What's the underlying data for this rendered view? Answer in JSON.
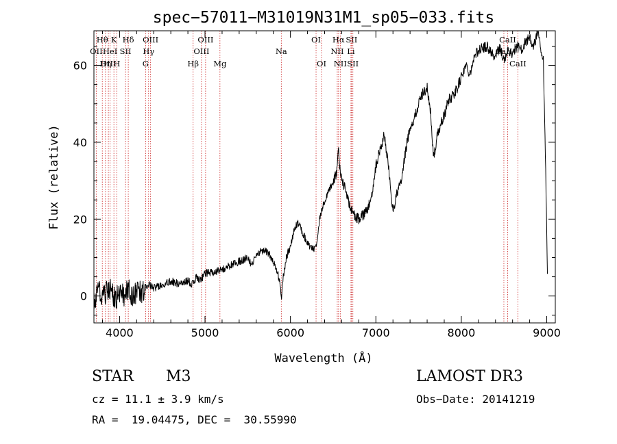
{
  "chart_data": {
    "type": "line",
    "title": "spec−57011−M31019N31M1_sp05−033.fits",
    "xlabel": "Wavelength (Å)",
    "ylabel": "Flux (relative)",
    "xlim": [
      3700,
      9100
    ],
    "ylim": [
      -7,
      69
    ],
    "x_ticks": [
      4000,
      5000,
      6000,
      7000,
      8000,
      9000
    ],
    "y_ticks": [
      0,
      20,
      40,
      60
    ],
    "grid": false,
    "series": [
      {
        "name": "flux",
        "color": "#000000",
        "x": [
          3700,
          3750,
          3800,
          3850,
          3900,
          3950,
          4000,
          4050,
          4100,
          4150,
          4200,
          4250,
          4300,
          4350,
          4400,
          4500,
          4600,
          4700,
          4800,
          4850,
          4900,
          4950,
          5000,
          5100,
          5200,
          5300,
          5400,
          5500,
          5550,
          5600,
          5700,
          5750,
          5800,
          5850,
          5880,
          5893,
          5910,
          5950,
          6000,
          6050,
          6100,
          6150,
          6200,
          6250,
          6300,
          6350,
          6400,
          6450,
          6500,
          6540,
          6563,
          6580,
          6600,
          6650,
          6700,
          6750,
          6800,
          6850,
          6900,
          6950,
          7000,
          7050,
          7100,
          7150,
          7200,
          7250,
          7300,
          7350,
          7400,
          7450,
          7500,
          7550,
          7600,
          7640,
          7660,
          7680,
          7700,
          7720,
          7750,
          7800,
          7850,
          7900,
          7950,
          8000,
          8050,
          8100,
          8150,
          8200,
          8300,
          8400,
          8450,
          8500,
          8550,
          8600,
          8650,
          8700,
          8750,
          8800,
          8850,
          8900,
          8930,
          8960,
          8990,
          9010
        ],
        "y": [
          -4,
          2,
          0,
          1,
          2,
          -1,
          1,
          0,
          2,
          0,
          1,
          1,
          2,
          3,
          2,
          3,
          4,
          3,
          4,
          3,
          5,
          4,
          6,
          6,
          7,
          8,
          9,
          10,
          8,
          11,
          12,
          11,
          9,
          6,
          3,
          -1,
          4,
          10,
          13,
          18,
          19,
          16,
          14,
          12,
          13,
          21,
          25,
          27,
          30,
          32,
          38,
          33,
          31,
          27,
          23,
          21,
          20,
          21,
          22,
          26,
          34,
          38,
          42,
          33,
          22,
          27,
          30,
          38,
          44,
          46,
          50,
          53,
          54,
          48,
          40,
          36,
          39,
          42,
          44,
          47,
          51,
          52,
          54,
          57,
          60,
          58,
          62,
          64,
          65,
          62,
          65,
          61,
          64,
          63,
          65,
          64,
          66,
          67,
          65,
          69,
          63,
          61,
          30,
          3
        ]
      }
    ],
    "lines": [
      {
        "label": "Hθ",
        "wave": 3798,
        "row": 0
      },
      {
        "label": "OII",
        "wave": 3727,
        "row": 1
      },
      {
        "label": "OIII",
        "wave": 3869,
        "row": 2
      },
      {
        "label": "Hη",
        "wave": 3835,
        "row": 2
      },
      {
        "label": "K",
        "wave": 3934,
        "row": 0
      },
      {
        "label": "HeI",
        "wave": 3889,
        "row": 1
      },
      {
        "label": "SII",
        "wave": 4070,
        "row": 1
      },
      {
        "label": "H",
        "wave": 3968,
        "row": 2
      },
      {
        "label": "Hδ",
        "wave": 4102,
        "row": 0
      },
      {
        "label": "OIII",
        "wave": 4363,
        "row": 0
      },
      {
        "label": "Hγ",
        "wave": 4340,
        "row": 1
      },
      {
        "label": "G",
        "wave": 4305,
        "row": 2
      },
      {
        "label": "Hβ",
        "wave": 4861,
        "row": 2
      },
      {
        "label": "OIII",
        "wave": 5007,
        "row": 0
      },
      {
        "label": "OIII",
        "wave": 4959,
        "row": 1
      },
      {
        "label": "Mg",
        "wave": 5175,
        "row": 2
      },
      {
        "label": "Na",
        "wave": 5893,
        "row": 1
      },
      {
        "label": "OI",
        "wave": 6300,
        "row": 0
      },
      {
        "label": "OI",
        "wave": 6364,
        "row": 2
      },
      {
        "label": "Hα",
        "wave": 6563,
        "row": 0
      },
      {
        "label": "SII",
        "wave": 6716,
        "row": 0
      },
      {
        "label": "NII",
        "wave": 6548,
        "row": 1
      },
      {
        "label": "Li",
        "wave": 6708,
        "row": 1
      },
      {
        "label": "NII",
        "wave": 6583,
        "row": 2
      },
      {
        "label": "SII",
        "wave": 6731,
        "row": 2
      },
      {
        "label": "CaII",
        "wave": 8542,
        "row": 0
      },
      {
        "label": "CaII",
        "wave": 8498,
        "row": 1
      },
      {
        "label": "CaII",
        "wave": 8662,
        "row": 2
      }
    ]
  },
  "info": {
    "class": "STAR",
    "subclass": "M3",
    "cz": "cz = 11.1 ± 3.9 km/s",
    "radec": "RA =  19.04475, DEC =  30.55990",
    "survey": "LAMOST DR3",
    "obsdate": "Obs−Date: 20141219"
  },
  "colors": {
    "line_marker": "#cc2222",
    "spectrum": "#000000"
  }
}
